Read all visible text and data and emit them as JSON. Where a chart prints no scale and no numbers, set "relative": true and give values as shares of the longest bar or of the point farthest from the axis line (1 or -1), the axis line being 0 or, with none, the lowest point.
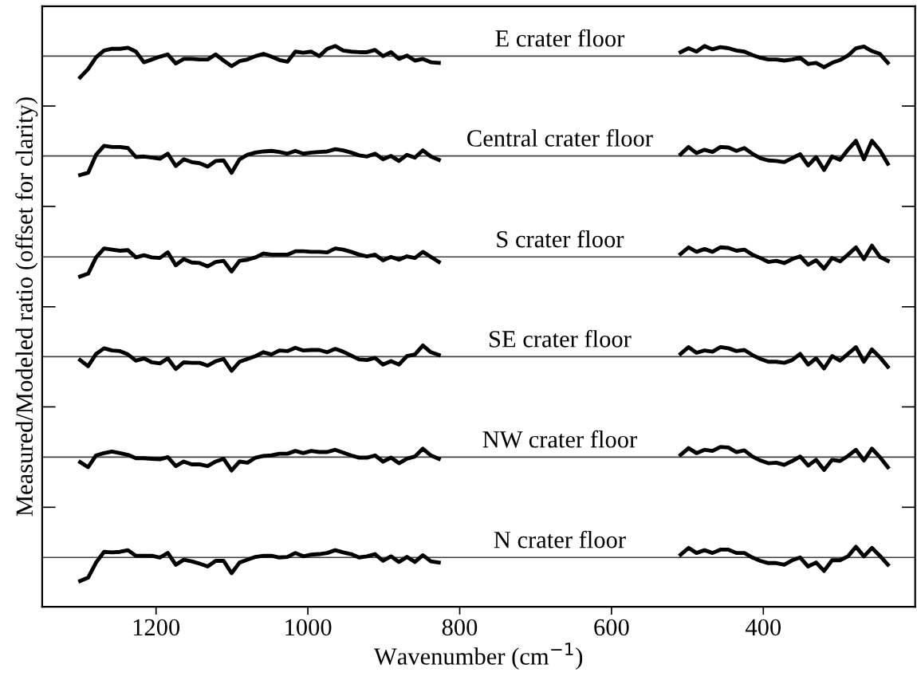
{
  "chart_data": {
    "type": "line",
    "relative": true,
    "xlabel": "Wavenumber (cm$^{−1}$)",
    "ylabel": "Measured/Modeled ratio (offset for clarity)",
    "xlim": [
      1350,
      200
    ],
    "xticks": [
      1200,
      1000,
      800,
      600,
      400
    ],
    "tick_labels": "x",
    "grid": false,
    "legend": false,
    "marker": "none",
    "line_style": "solid",
    "x": [
      1300,
      1289.5,
      1279,
      1268.5,
      1258,
      1247.5,
      1237,
      1226.5,
      1216,
      1205.5,
      1195,
      1184.5,
      1174,
      1163.5,
      1153,
      1142.5,
      1132,
      1121.5,
      1111,
      1100.5,
      1090,
      1079.5,
      1069,
      1058.5,
      1048,
      1037.5,
      1027,
      1016.5,
      1006,
      995.5,
      985,
      974.5,
      964,
      953.5,
      943,
      932.5,
      922,
      911.5,
      901,
      890.5,
      880,
      869.5,
      859,
      848.5,
      838,
      827.5,
      700,
      509,
      498.5,
      488,
      477.5,
      467,
      456.5,
      446,
      435.5,
      425,
      414.5,
      404,
      393.5,
      383,
      372.5,
      362,
      351.5,
      341,
      330.5,
      320,
      309.5,
      299,
      288.5,
      278,
      267.5,
      257,
      246.5,
      236
    ],
    "series": [
      {
        "name": "E crater floor",
        "color": "#000000",
        "values": [
          0.944,
          0.959,
          0.98,
          0.992,
          0.995,
          0.995,
          0.997,
          0.99,
          0.971,
          0.976,
          0.981,
          0.985,
          0.969,
          0.977,
          0.977,
          0.976,
          0.976,
          0.985,
          0.974,
          0.964,
          0.973,
          0.976,
          0.982,
          0.986,
          0.981,
          0.975,
          0.972,
          0.99,
          0.988,
          0.99,
          0.982,
          0.995,
          1.0,
          0.992,
          0.99,
          0.989,
          0.989,
          0.993,
          0.982,
          0.989,
          0.977,
          0.983,
          0.974,
          0.977,
          0.971,
          0.97,
          null,
          0.989,
          0.996,
          0.99,
          1.0,
          0.994,
          0.998,
          0.996,
          0.992,
          0.99,
          0.984,
          0.979,
          0.976,
          0.976,
          0.974,
          0.976,
          0.979,
          0.968,
          0.97,
          0.962,
          0.97,
          0.975,
          0.983,
          0.996,
          0.999,
          0.991,
          0.986,
          0.97
        ]
      },
      {
        "name": "Central crater floor",
        "color": "#000000",
        "values": [
          0.77,
          0.774,
          0.806,
          0.822,
          0.82,
          0.82,
          0.818,
          0.802,
          0.803,
          0.801,
          0.799,
          0.808,
          0.786,
          0.798,
          0.793,
          0.791,
          0.785,
          0.795,
          0.796,
          0.774,
          0.798,
          0.806,
          0.81,
          0.812,
          0.813,
          0.811,
          0.808,
          0.813,
          0.808,
          0.81,
          0.811,
          0.812,
          0.816,
          0.814,
          0.81,
          0.805,
          0.803,
          0.808,
          0.798,
          0.804,
          0.795,
          0.806,
          0.801,
          0.814,
          0.803,
          0.797,
          null,
          0.807,
          0.82,
          0.809,
          0.815,
          0.811,
          0.82,
          0.819,
          0.813,
          0.818,
          0.808,
          0.8,
          0.796,
          0.795,
          0.793,
          0.8,
          0.807,
          0.787,
          0.802,
          0.779,
          0.803,
          0.797,
          0.815,
          0.831,
          0.798,
          0.831,
          0.814,
          0.79
        ]
      },
      {
        "name": "S crater floor",
        "color": "#000000",
        "values": [
          0.589,
          0.594,
          0.623,
          0.639,
          0.637,
          0.635,
          0.636,
          0.623,
          0.627,
          0.623,
          0.622,
          0.632,
          0.609,
          0.62,
          0.614,
          0.613,
          0.607,
          0.615,
          0.617,
          0.598,
          0.617,
          0.619,
          0.623,
          0.63,
          0.628,
          0.628,
          0.628,
          0.634,
          0.634,
          0.633,
          0.633,
          0.632,
          0.639,
          0.637,
          0.633,
          0.628,
          0.625,
          0.628,
          0.618,
          0.624,
          0.619,
          0.625,
          0.622,
          0.633,
          0.624,
          0.615,
          null,
          0.629,
          0.641,
          0.633,
          0.638,
          0.633,
          0.641,
          0.64,
          0.635,
          0.637,
          0.628,
          0.622,
          0.615,
          0.617,
          0.613,
          0.62,
          0.625,
          0.61,
          0.618,
          0.603,
          0.622,
          0.616,
          0.628,
          0.641,
          0.62,
          0.644,
          0.624,
          0.617
        ]
      },
      {
        "name": "SE crater floor",
        "color": "#000000",
        "values": [
          0.44,
          0.429,
          0.451,
          0.461,
          0.457,
          0.456,
          0.45,
          0.439,
          0.443,
          0.436,
          0.434,
          0.443,
          0.424,
          0.436,
          0.435,
          0.435,
          0.43,
          0.438,
          0.442,
          0.421,
          0.437,
          0.442,
          0.447,
          0.454,
          0.45,
          0.457,
          0.456,
          0.462,
          0.457,
          0.458,
          0.458,
          0.454,
          0.46,
          0.455,
          0.448,
          0.441,
          0.44,
          0.444,
          0.432,
          0.438,
          0.432,
          0.447,
          0.45,
          0.466,
          0.454,
          0.449,
          null,
          0.451,
          0.463,
          0.453,
          0.457,
          0.455,
          0.463,
          0.461,
          0.456,
          0.458,
          0.449,
          0.442,
          0.437,
          0.437,
          0.435,
          0.44,
          0.451,
          0.432,
          0.443,
          0.425,
          0.447,
          0.439,
          0.451,
          0.463,
          0.437,
          0.459,
          0.445,
          0.428
        ]
      },
      {
        "name": "NW crater floor",
        "color": "#000000",
        "values": [
          0.258,
          0.249,
          0.27,
          0.274,
          0.277,
          0.274,
          0.271,
          0.265,
          0.265,
          0.264,
          0.263,
          0.267,
          0.251,
          0.259,
          0.254,
          0.254,
          0.251,
          0.259,
          0.264,
          0.243,
          0.259,
          0.257,
          0.266,
          0.269,
          0.27,
          0.273,
          0.273,
          0.278,
          0.274,
          0.278,
          0.276,
          0.276,
          0.28,
          0.275,
          0.27,
          0.266,
          0.266,
          0.27,
          0.259,
          0.266,
          0.256,
          0.264,
          0.268,
          0.282,
          0.27,
          0.264,
          null,
          0.271,
          0.283,
          0.274,
          0.28,
          0.278,
          0.285,
          0.284,
          0.276,
          0.279,
          0.268,
          0.261,
          0.256,
          0.257,
          0.253,
          0.26,
          0.268,
          0.252,
          0.262,
          0.244,
          0.262,
          0.26,
          0.269,
          0.28,
          0.261,
          0.282,
          0.267,
          0.249
        ]
      },
      {
        "name": "N crater floor",
        "color": "#000000",
        "values": [
          0.046,
          0.052,
          0.079,
          0.098,
          0.097,
          0.098,
          0.101,
          0.091,
          0.091,
          0.091,
          0.088,
          0.096,
          0.075,
          0.084,
          0.081,
          0.077,
          0.072,
          0.082,
          0.082,
          0.06,
          0.079,
          0.084,
          0.089,
          0.091,
          0.091,
          0.088,
          0.089,
          0.096,
          0.09,
          0.093,
          0.094,
          0.096,
          0.101,
          0.097,
          0.094,
          0.088,
          0.09,
          0.094,
          0.082,
          0.09,
          0.08,
          0.089,
          0.08,
          0.092,
          0.081,
          0.079,
          null,
          0.093,
          0.105,
          0.096,
          0.101,
          0.096,
          0.102,
          0.102,
          0.096,
          0.096,
          0.088,
          0.082,
          0.078,
          0.078,
          0.075,
          0.083,
          0.088,
          0.072,
          0.079,
          0.064,
          0.083,
          0.083,
          0.09,
          0.107,
          0.09,
          0.105,
          0.091,
          0.075
        ]
      }
    ],
    "ref_lines": [
      {
        "axis": "y",
        "value": 0.982,
        "color": "#404040"
      },
      {
        "axis": "y",
        "value": 0.804,
        "color": "#404040"
      },
      {
        "axis": "y",
        "value": 0.624,
        "color": "#404040"
      },
      {
        "axis": "y",
        "value": 0.446,
        "color": "#404040"
      },
      {
        "axis": "y",
        "value": 0.267,
        "color": "#404040"
      },
      {
        "axis": "y",
        "value": 0.088,
        "color": "#404040"
      }
    ]
  }
}
